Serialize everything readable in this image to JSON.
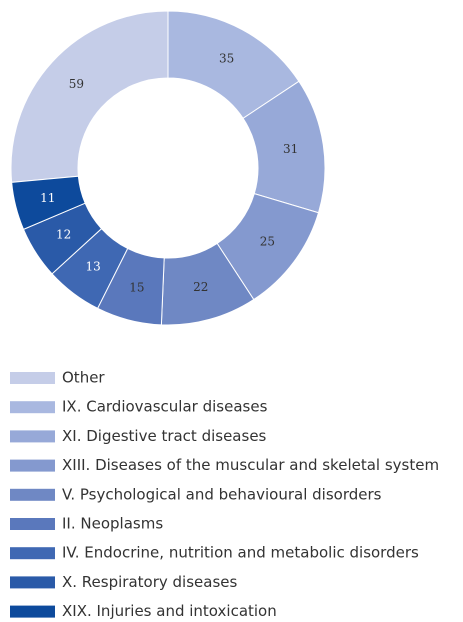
{
  "chart_data": {
    "type": "donut",
    "categories": [
      "Other",
      "IX. Cardiovascular diseases",
      "XI. Digestive tract diseases",
      "XIII. Diseases of the muscular and skeletal system",
      "V. Psychological and behavioural disorders",
      "II. Neoplasms",
      "IV. Endocrine, nutrition and metabolic disorders",
      "X. Respiratory diseases",
      "XIX. Injuries and intoxication"
    ],
    "values": [
      59,
      35,
      31,
      25,
      22,
      15,
      13,
      12,
      11
    ],
    "colors": [
      "#c5cde8",
      "#a9b8e0",
      "#97a9d8",
      "#8499cf",
      "#6f88c4",
      "#5a78bc",
      "#3f68b3",
      "#2a5aa8",
      "#0d4a9c"
    ],
    "legend": "bottom-left"
  }
}
